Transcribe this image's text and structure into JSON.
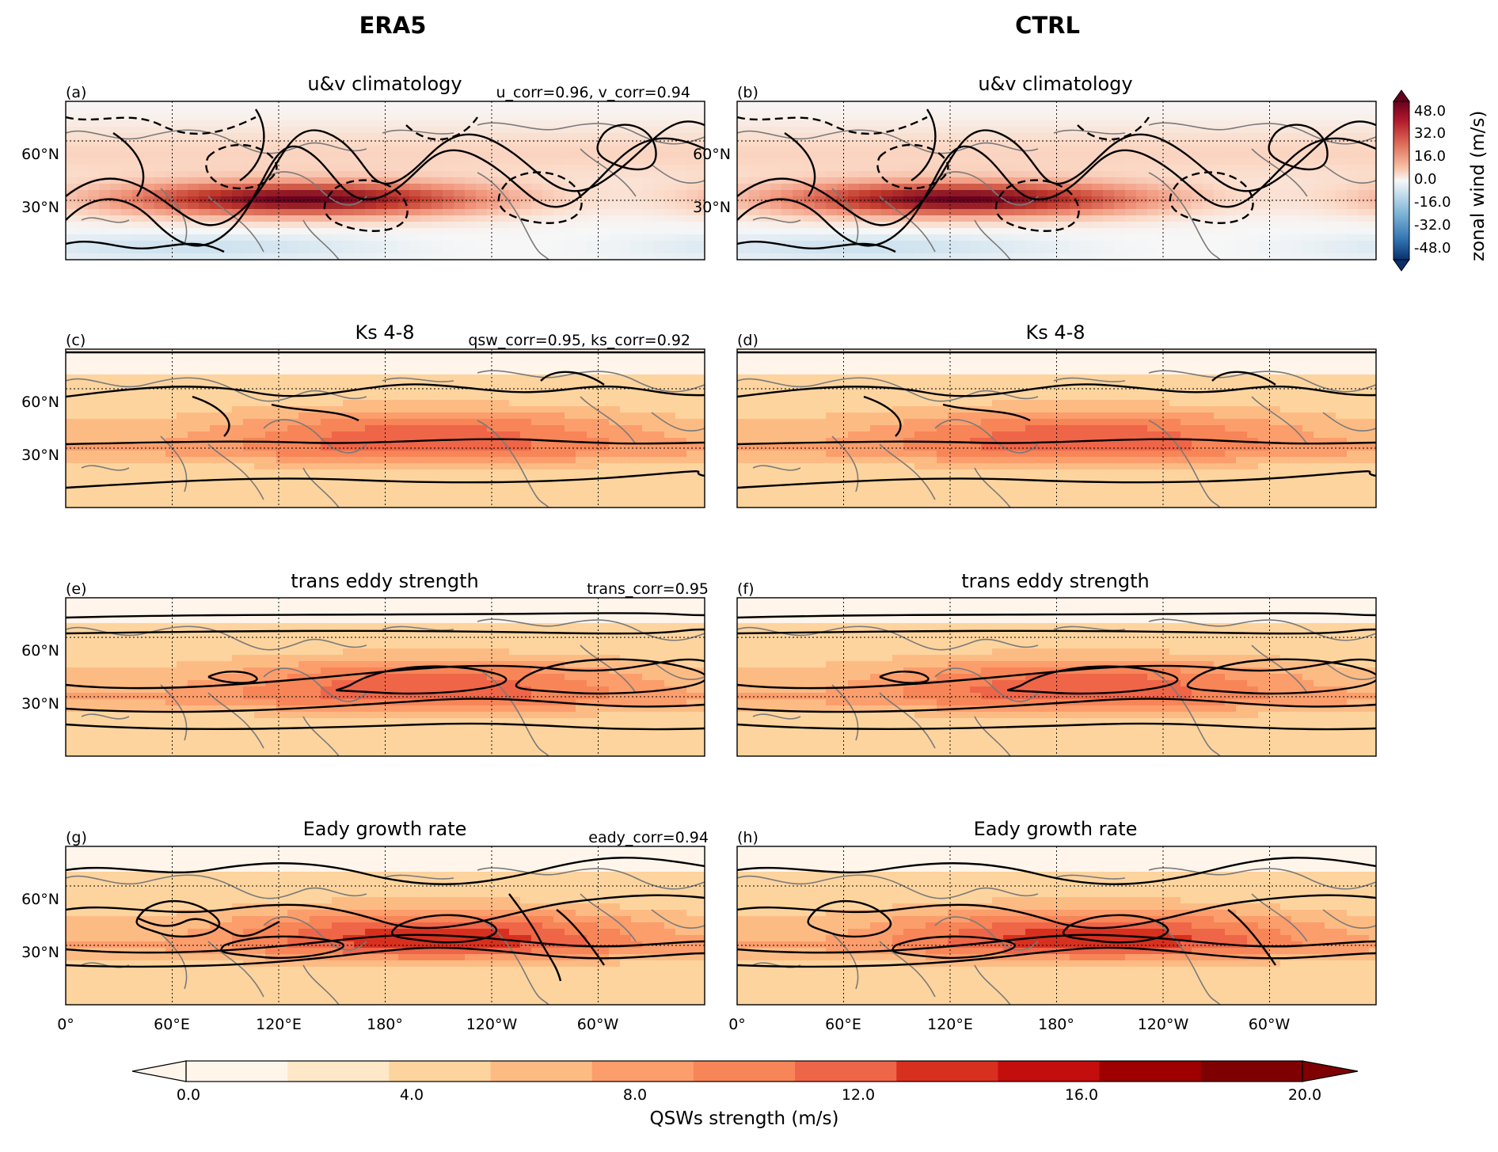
{
  "column_titles": [
    "ERA5",
    "CTRL"
  ],
  "chart_data": [
    {
      "type": "heatmap",
      "panel": "a",
      "label": "(a)",
      "title": "u&v climatology",
      "annotation": "u_corr=0.96, v_corr=0.94",
      "field": "zonal wind",
      "contours": "u&v"
    },
    {
      "type": "heatmap",
      "panel": "b",
      "label": "(b)",
      "title": "u&v climatology",
      "annotation": "",
      "field": "zonal wind",
      "contours": "u&v"
    },
    {
      "type": "heatmap",
      "panel": "c",
      "label": "(c)",
      "title": "Ks 4-8",
      "annotation": "qsw_corr=0.95, ks_corr=0.92",
      "field": "QSWs strength",
      "contours": "Ks 4-8"
    },
    {
      "type": "heatmap",
      "panel": "d",
      "label": "(d)",
      "title": "Ks 4-8",
      "annotation": "",
      "field": "QSWs strength",
      "contours": "Ks 4-8"
    },
    {
      "type": "heatmap",
      "panel": "e",
      "label": "(e)",
      "title": "trans eddy strength",
      "annotation": "trans_corr=0.95",
      "field": "QSWs strength",
      "contours": "trans eddy strength"
    },
    {
      "type": "heatmap",
      "panel": "f",
      "label": "(f)",
      "title": "trans eddy strength",
      "annotation": "",
      "field": "QSWs strength",
      "contours": "trans eddy strength"
    },
    {
      "type": "heatmap",
      "panel": "g",
      "label": "(g)",
      "title": "Eady growth rate",
      "annotation": "eady_corr=0.94",
      "field": "QSWs strength",
      "contours": "Eady growth rate"
    },
    {
      "type": "heatmap",
      "panel": "h",
      "label": "(h)",
      "title": "Eady growth rate",
      "annotation": "",
      "field": "QSWs strength",
      "contours": "Eady growth rate"
    }
  ],
  "axes": {
    "yticks": [
      "60°N",
      "30°N"
    ],
    "xticks": [
      "0°",
      "60°E",
      "120°E",
      "180°",
      "120°W",
      "60°W"
    ]
  },
  "colorbar_wind": {
    "label": "zonal wind (m/s)",
    "ticks": [
      "48.0",
      "32.0",
      "16.0",
      "0.0",
      "-16.0",
      "-32.0",
      "-48.0"
    ],
    "range": [
      -56,
      56
    ],
    "extend": "both",
    "colormap": "RdBu_r"
  },
  "colorbar_qsw": {
    "label": "QSWs strength (m/s)",
    "ticks": [
      "0.0",
      "4.0",
      "8.0",
      "12.0",
      "16.0",
      "20.0"
    ],
    "range": [
      0,
      22
    ],
    "extend": "both",
    "colormap": "OrRd",
    "colors": [
      "#fff5eb",
      "#fee8c8",
      "#fdd49e",
      "#fdbb84",
      "#fc9d6c",
      "#f78557",
      "#ef6548",
      "#d7301f",
      "#c40d0d",
      "#9e0000",
      "#7f0000"
    ]
  }
}
